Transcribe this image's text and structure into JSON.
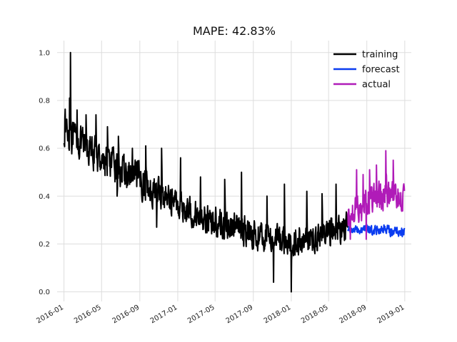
{
  "chart_data": {
    "type": "line",
    "title": "MAPE: 42.83%",
    "xlabel": "",
    "ylabel": "",
    "grid": true,
    "legend_position": "top-right",
    "ylim": [
      -0.04,
      1.05
    ],
    "xlim": [
      "2015-12-10",
      "2019-01-22"
    ],
    "y_ticks": [
      {
        "value": 0.0,
        "label": "0.0"
      },
      {
        "value": 0.2,
        "label": "0.2"
      },
      {
        "value": 0.4,
        "label": "0.4"
      },
      {
        "value": 0.6,
        "label": "0.6"
      },
      {
        "value": 0.8,
        "label": "0.8"
      },
      {
        "value": 1.0,
        "label": "1.0"
      }
    ],
    "x_ticks": [
      {
        "value": "2016-01-01",
        "label": "2016-01"
      },
      {
        "value": "2016-05-01",
        "label": "2016-05"
      },
      {
        "value": "2016-09-01",
        "label": "2016-09"
      },
      {
        "value": "2017-01-01",
        "label": "2017-01"
      },
      {
        "value": "2017-05-01",
        "label": "2017-05"
      },
      {
        "value": "2017-09-01",
        "label": "2017-09"
      },
      {
        "value": "2018-01-01",
        "label": "2018-01"
      },
      {
        "value": "2018-05-01",
        "label": "2018-05"
      },
      {
        "value": "2018-09-01",
        "label": "2018-09"
      },
      {
        "value": "2019-01-01",
        "label": "2019-01"
      }
    ],
    "series": [
      {
        "name": "training",
        "color": "#000000",
        "x": [
          "2016-01-01",
          "2016-01-13",
          "2016-01-24",
          "2016-02-05",
          "2016-02-20",
          "2016-03-08",
          "2016-03-25",
          "2016-04-12",
          "2016-04-30",
          "2016-05-18",
          "2016-06-05",
          "2016-06-25",
          "2016-07-15",
          "2016-08-05",
          "2016-08-26",
          "2016-09-15",
          "2016-10-05",
          "2016-10-25",
          "2016-11-15",
          "2016-12-06",
          "2016-12-27",
          "2017-01-17",
          "2017-02-07",
          "2017-02-28",
          "2017-03-20",
          "2017-04-10",
          "2017-05-01",
          "2017-05-22",
          "2017-06-12",
          "2017-07-03",
          "2017-07-24",
          "2017-08-14",
          "2017-09-04",
          "2017-09-25",
          "2017-10-16",
          "2017-11-06",
          "2017-11-27",
          "2017-12-18",
          "2018-01-01",
          "2018-01-22",
          "2018-02-12",
          "2018-03-05",
          "2018-03-26",
          "2018-04-16",
          "2018-05-07",
          "2018-05-28",
          "2018-06-18",
          "2018-07-02"
        ],
        "y": [
          0.7,
          0.67,
          0.64,
          0.63,
          0.62,
          0.61,
          0.59,
          0.57,
          0.56,
          0.54,
          0.53,
          0.51,
          0.49,
          0.48,
          0.47,
          0.45,
          0.43,
          0.42,
          0.4,
          0.39,
          0.37,
          0.35,
          0.34,
          0.32,
          0.31,
          0.3,
          0.29,
          0.28,
          0.27,
          0.27,
          0.26,
          0.25,
          0.24,
          0.23,
          0.23,
          0.22,
          0.22,
          0.21,
          0.21,
          0.21,
          0.22,
          0.22,
          0.23,
          0.24,
          0.25,
          0.26,
          0.27,
          0.28
        ],
        "spread": [
          0.1,
          0.1,
          0.09,
          0.09,
          0.09,
          0.09,
          0.09,
          0.09,
          0.09,
          0.09,
          0.09,
          0.09,
          0.09,
          0.09,
          0.09,
          0.09,
          0.09,
          0.09,
          0.08,
          0.08,
          0.08,
          0.08,
          0.08,
          0.08,
          0.08,
          0.08,
          0.08,
          0.08,
          0.08,
          0.08,
          0.08,
          0.08,
          0.08,
          0.08,
          0.08,
          0.08,
          0.08,
          0.08,
          0.09,
          0.08,
          0.08,
          0.08,
          0.08,
          0.08,
          0.08,
          0.08,
          0.08,
          0.08
        ],
        "peaks": [
          {
            "x": "2016-01-22",
            "y": 1.0
          },
          {
            "x": "2016-01-19",
            "y": 0.81
          },
          {
            "x": "2016-02-12",
            "y": 0.76
          },
          {
            "x": "2016-03-12",
            "y": 0.74
          },
          {
            "x": "2016-04-13",
            "y": 0.74
          },
          {
            "x": "2016-05-20",
            "y": 0.69
          },
          {
            "x": "2016-06-24",
            "y": 0.65
          },
          {
            "x": "2016-08-08",
            "y": 0.6
          },
          {
            "x": "2016-09-20",
            "y": 0.61
          },
          {
            "x": "2016-11-10",
            "y": 0.6
          },
          {
            "x": "2017-01-10",
            "y": 0.56
          },
          {
            "x": "2017-03-15",
            "y": 0.48
          },
          {
            "x": "2017-06-01",
            "y": 0.47
          },
          {
            "x": "2017-07-25",
            "y": 0.5
          },
          {
            "x": "2017-10-15",
            "y": 0.4
          },
          {
            "x": "2017-12-10",
            "y": 0.45
          },
          {
            "x": "2018-02-20",
            "y": 0.42
          },
          {
            "x": "2018-04-10",
            "y": 0.41
          },
          {
            "x": "2018-05-25",
            "y": 0.45
          },
          {
            "x": "2018-01-01",
            "y": 0.0
          },
          {
            "x": "2017-11-05",
            "y": 0.04
          },
          {
            "x": "2016-06-20",
            "y": 0.4
          },
          {
            "x": "2016-10-25",
            "y": 0.27
          }
        ]
      },
      {
        "name": "forecast",
        "color": "#0a3cf0",
        "x": [
          "2018-07-02",
          "2018-07-20",
          "2018-08-10",
          "2018-08-31",
          "2018-09-20",
          "2018-10-10",
          "2018-10-30",
          "2018-11-20",
          "2018-12-10",
          "2018-12-31"
        ],
        "y": [
          0.26,
          0.26,
          0.26,
          0.26,
          0.26,
          0.26,
          0.26,
          0.25,
          0.25,
          0.25
        ],
        "spread": [
          0.025,
          0.025,
          0.025,
          0.03,
          0.03,
          0.03,
          0.03,
          0.03,
          0.03,
          0.03
        ],
        "peaks": []
      },
      {
        "name": "actual",
        "color": "#b01bb8",
        "x": [
          "2018-07-02",
          "2018-07-20",
          "2018-08-10",
          "2018-08-31",
          "2018-09-20",
          "2018-10-10",
          "2018-10-30",
          "2018-11-20",
          "2018-12-10",
          "2018-12-31"
        ],
        "y": [
          0.31,
          0.34,
          0.36,
          0.37,
          0.38,
          0.39,
          0.4,
          0.41,
          0.4,
          0.39
        ],
        "spread": [
          0.07,
          0.07,
          0.08,
          0.08,
          0.08,
          0.09,
          0.09,
          0.08,
          0.08,
          0.08
        ],
        "peaks": [
          {
            "x": "2018-07-30",
            "y": 0.51
          },
          {
            "x": "2018-10-02",
            "y": 0.53
          },
          {
            "x": "2018-11-01",
            "y": 0.59
          },
          {
            "x": "2018-11-25",
            "y": 0.55
          },
          {
            "x": "2018-08-20",
            "y": 0.49
          },
          {
            "x": "2018-09-10",
            "y": 0.51
          },
          {
            "x": "2018-07-10",
            "y": 0.22
          },
          {
            "x": "2018-08-30",
            "y": 0.22
          }
        ]
      }
    ]
  }
}
